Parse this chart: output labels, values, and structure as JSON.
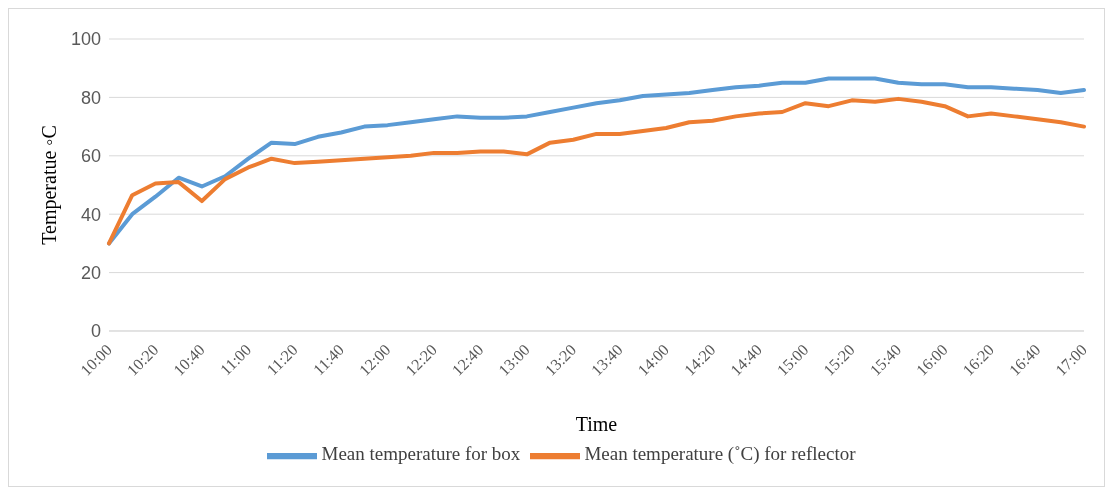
{
  "chart_data": {
    "type": "line",
    "xlabel": "Time",
    "ylabel": "Temperatue ◦C",
    "categories": [
      "10:00",
      null,
      "10:20",
      null,
      "10:40",
      null,
      "11:00",
      null,
      "11:20",
      null,
      "11:40",
      null,
      "12:00",
      null,
      "12:20",
      null,
      "12:40",
      null,
      "13:00",
      null,
      "13:20",
      null,
      "13:40",
      null,
      "14:00",
      null,
      "14:20",
      null,
      "14:40",
      null,
      "15:00",
      null,
      "15:20",
      null,
      "15:40",
      null,
      "16:00",
      null,
      "16:20",
      null,
      "16:40",
      null,
      "17:00"
    ],
    "series": [
      {
        "name": "Mean temperature for box",
        "color": "#5b9bd5",
        "values": [
          30,
          40,
          46,
          52.5,
          49.5,
          53,
          59,
          64.5,
          64,
          66.5,
          68,
          70,
          70.5,
          71.5,
          72.5,
          73.5,
          73,
          73,
          73.5,
          75,
          76.5,
          78,
          79,
          80.5,
          81,
          81.5,
          82.5,
          83.5,
          84,
          85,
          85,
          86.5,
          86.5,
          86.5,
          85,
          84.5,
          84.5,
          83.5,
          83.5,
          83,
          82.5,
          81.5,
          82.5
        ]
      },
      {
        "name": "Mean temperature (˚C) for reflector",
        "color": "#ed7d31",
        "values": [
          30,
          46.5,
          50.5,
          51,
          44.5,
          52,
          56,
          59,
          57.5,
          58,
          58.5,
          59,
          59.5,
          60,
          61,
          61,
          61.5,
          61.5,
          60.5,
          64.5,
          65.5,
          67.5,
          67.5,
          68.5,
          69.5,
          71.5,
          72,
          73.5,
          74.5,
          75,
          78,
          77,
          79,
          78.5,
          79.5,
          78.5,
          77,
          73.5,
          74.5,
          73.5,
          72.5,
          71.5,
          70
        ]
      }
    ],
    "ylim": [
      0,
      100
    ],
    "yticks": [
      0,
      20,
      40,
      60,
      80,
      100
    ],
    "grid": "y",
    "legend": "bottom",
    "marker": "none",
    "line_style": "solid"
  }
}
